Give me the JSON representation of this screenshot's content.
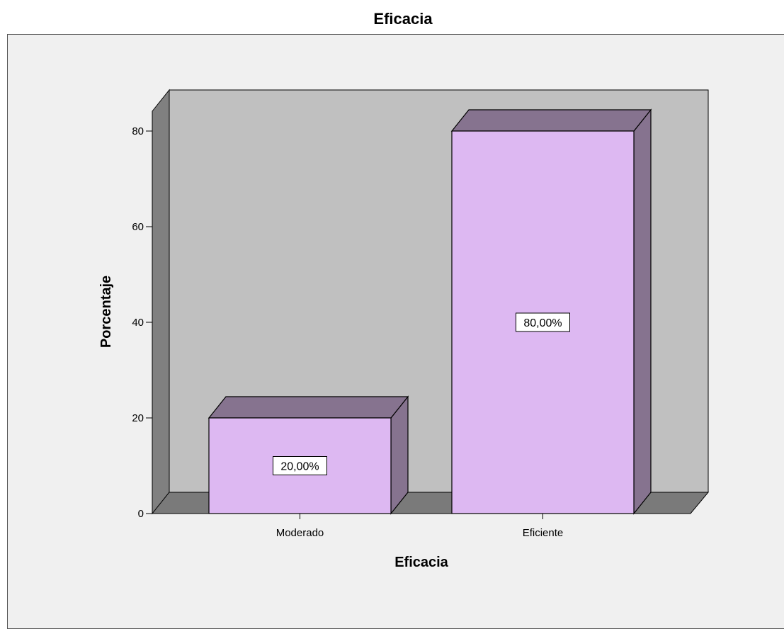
{
  "chart_data": {
    "type": "bar",
    "title": "Eficacia",
    "xlabel": "Eficacia",
    "ylabel": "Porcentaje",
    "categories": [
      "Moderado",
      "Eficiente"
    ],
    "values": [
      20,
      80
    ],
    "data_labels": [
      "20,00%",
      "80,00%"
    ],
    "yticks": [
      0,
      20,
      40,
      60,
      80
    ],
    "ylim": [
      0,
      80
    ],
    "three_d": true,
    "grid": false,
    "legend": "none",
    "colors": {
      "bar_front": "#ddb8f2",
      "bar_side": "#86738f",
      "wall": "#c0c0c0",
      "wall_side": "#808080",
      "floor": "#7a7a7a",
      "frame_bg": "#f0f0f0"
    }
  }
}
